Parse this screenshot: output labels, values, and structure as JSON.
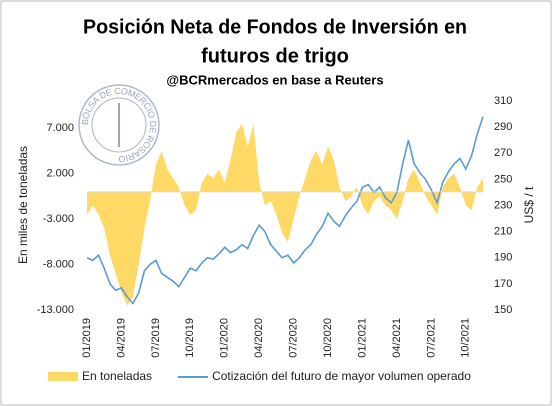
{
  "chart_data": {
    "type": "area_line",
    "title": [
      "Posición Neta de Fondos de Inversión en",
      "futuros de trigo"
    ],
    "subtitle": "@BCRmercados en base a Reuters",
    "logo_text": "BOLSA DE COMERCIO DE ROSARIO",
    "ylabel": "En miles de toneladas",
    "y2label": "US$ / t",
    "categories": [
      "01/2019",
      null,
      null,
      null,
      null,
      null,
      "04/2019",
      null,
      null,
      null,
      null,
      null,
      "07/2019",
      null,
      null,
      null,
      null,
      null,
      "10/2019",
      null,
      null,
      null,
      null,
      null,
      "01/2020",
      null,
      null,
      null,
      null,
      null,
      "04/2020",
      null,
      null,
      null,
      null,
      null,
      "07/2020",
      null,
      null,
      null,
      null,
      null,
      "10/2020",
      null,
      null,
      null,
      null,
      null,
      "01/2021",
      null,
      null,
      null,
      null,
      null,
      "04/2021",
      null,
      null,
      null,
      null,
      null,
      "07/2021",
      null,
      null,
      null,
      null,
      null,
      "10/2021",
      null,
      null,
      null
    ],
    "series": [
      {
        "name": "En toneladas",
        "color": "#ffd966",
        "kind": "area",
        "values": [
          -2500,
          -1500,
          -2500,
          -4000,
          -7000,
          -9000,
          -11000,
          -12500,
          -11500,
          -8000,
          -4000,
          -1000,
          3000,
          4500,
          2500,
          1500,
          500,
          -1500,
          -2500,
          -2000,
          1000,
          2000,
          1500,
          2500,
          1000,
          3500,
          6500,
          7500,
          5000,
          7500,
          1000,
          -1500,
          -1000,
          -2500,
          -4500,
          -5500,
          -3000,
          -500,
          1500,
          3500,
          4500,
          3000,
          5000,
          3500,
          500,
          -1000,
          -500,
          500,
          -1500,
          -2500,
          -1000,
          -500,
          -1500,
          -2000,
          -3000,
          -1000,
          1500,
          2500,
          1000,
          -500,
          -1500,
          -2500,
          500,
          1500,
          2000,
          500,
          -1500,
          -2000,
          500,
          1500
        ]
      },
      {
        "name": "Cotización del futuro de mayor volumen operado",
        "color": "#5b9bd5",
        "kind": "line",
        "axis": "y2",
        "values": [
          190,
          188,
          192,
          182,
          170,
          165,
          167,
          160,
          155,
          163,
          180,
          185,
          188,
          178,
          175,
          172,
          168,
          175,
          182,
          180,
          186,
          190,
          189,
          193,
          198,
          194,
          196,
          200,
          197,
          207,
          215,
          210,
          200,
          195,
          190,
          192,
          186,
          190,
          196,
          200,
          208,
          214,
          224,
          218,
          214,
          222,
          228,
          233,
          244,
          246,
          240,
          244,
          236,
          232,
          240,
          262,
          280,
          262,
          255,
          250,
          242,
          232,
          248,
          256,
          262,
          266,
          258,
          268,
          285,
          298
        ]
      }
    ],
    "ylim": [
      -13000,
      10000
    ],
    "yticks": [
      {
        "value": -13000,
        "label": "-13.000"
      },
      {
        "value": -8000,
        "label": "-8.000"
      },
      {
        "value": -3000,
        "label": "-3.000"
      },
      {
        "value": 2000,
        "label": "2.000"
      },
      {
        "value": 7000,
        "label": "7.000"
      }
    ],
    "y2lim": [
      150,
      310
    ],
    "y2ticks": [
      150,
      170,
      190,
      210,
      230,
      250,
      270,
      290,
      310
    ]
  }
}
